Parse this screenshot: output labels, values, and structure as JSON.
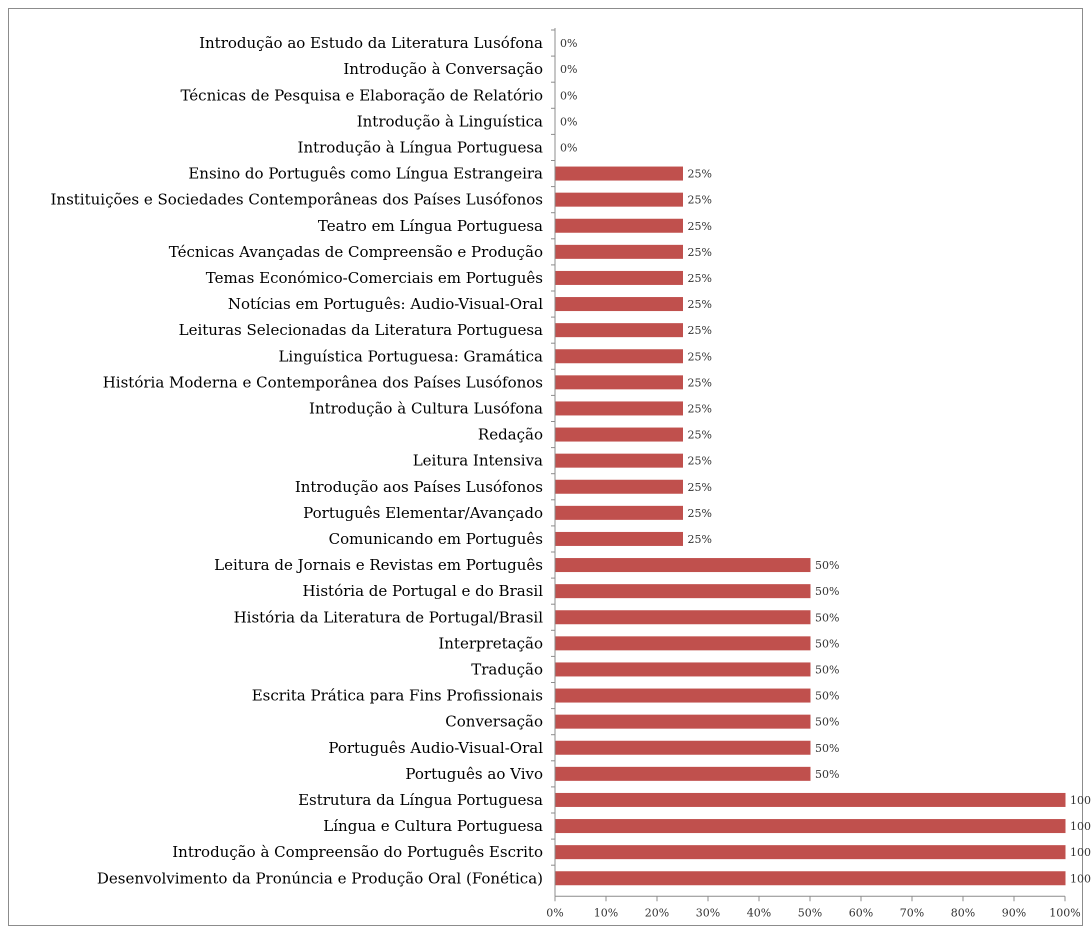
{
  "chart_data": {
    "type": "bar",
    "orientation": "horizontal",
    "categories": [
      "Introdução ao Estudo da Literatura Lusófona",
      "Introdução à Conversação",
      "Técnicas de Pesquisa e Elaboração de Relatório",
      "Introdução à Linguística",
      "Introdução à Língua Portuguesa",
      "Ensino do Português como Língua Estrangeira",
      "Instituições e Sociedades Contemporâneas dos Países Lusófonos",
      "Teatro em Língua Portuguesa",
      "Técnicas Avançadas de Compreensão e Produção",
      "Temas Económico-Comerciais em Português",
      "Notícias em Português: Audio-Visual-Oral",
      "Leituras Selecionadas da Literatura Portuguesa",
      "Linguística Portuguesa: Gramática",
      "História Moderna e Contemporânea dos Países Lusófonos",
      "Introdução à Cultura Lusófona",
      "Redação",
      "Leitura Intensiva",
      "Introdução aos Países Lusófonos",
      "Português Elementar/Avançado",
      "Comunicando em Português",
      "Leitura de Jornais e Revistas em Português",
      "História de Portugal e do Brasil",
      "História da Literatura de Portugal/Brasil",
      "Interpretação",
      "Tradução",
      "Escrita Prática para Fins Profissionais",
      "Conversação",
      "Português Audio-Visual-Oral",
      "Português ao Vivo",
      "Estrutura da Língua Portuguesa",
      "Língua e Cultura Portuguesa",
      "Introdução à Compreensão do Português Escrito",
      "Desenvolvimento da Pronúncia e Produção Oral (Fonética)"
    ],
    "values": [
      0,
      0,
      0,
      0,
      0,
      25,
      25,
      25,
      25,
      25,
      25,
      25,
      25,
      25,
      25,
      25,
      25,
      25,
      25,
      25,
      50,
      50,
      50,
      50,
      50,
      50,
      50,
      50,
      50,
      100,
      100,
      100,
      100
    ],
    "data_labels": [
      "0%",
      "0%",
      "0%",
      "0%",
      "0%",
      "25%",
      "25%",
      "25%",
      "25%",
      "25%",
      "25%",
      "25%",
      "25%",
      "25%",
      "25%",
      "25%",
      "25%",
      "25%",
      "25%",
      "25%",
      "50%",
      "50%",
      "50%",
      "50%",
      "50%",
      "50%",
      "50%",
      "50%",
      "50%",
      "100",
      "100",
      "100",
      "100"
    ],
    "x_ticks": [
      "0%",
      "10%",
      "20%",
      "30%",
      "40%",
      "50%",
      "60%",
      "70%",
      "80%",
      "90%",
      "100%"
    ],
    "xlim": [
      0,
      100
    ],
    "grid": false,
    "bar_color": "#c0504d",
    "title": "",
    "xlabel": "",
    "ylabel": ""
  }
}
